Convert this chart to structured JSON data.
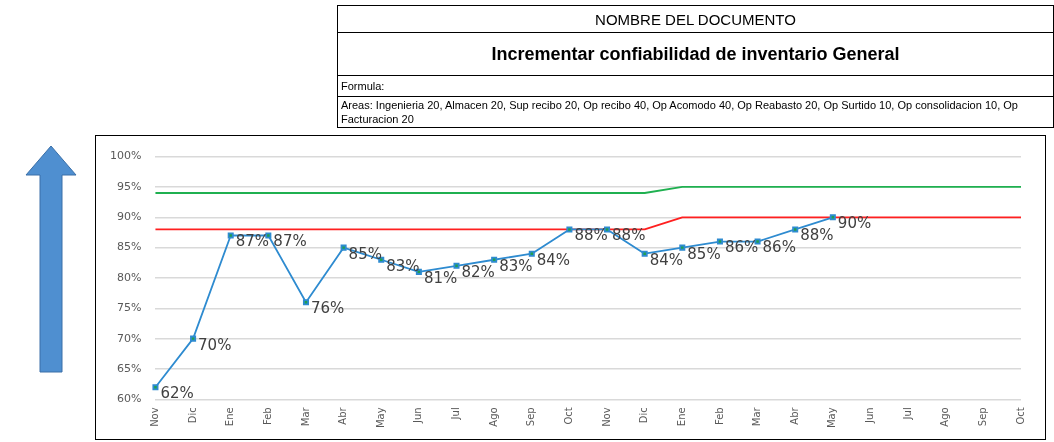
{
  "chart_data": {
    "type": "line",
    "subtitle": "NOMBRE DEL DOCUMENTO",
    "title": "Incrementar confiabilidad de inventario General",
    "annotations": [
      "Formula:",
      "Areas: Ingenieria 20, Almacen 20, Sup recibo 20, Op recibo 40, Op Acomodo 40, Op Reabasto 20, Op Surtido 10, Op consolidacion 10, Op Facturacion 20"
    ],
    "categories": [
      "Nov",
      "Dic",
      "Ene",
      "Feb",
      "Mar",
      "Abr",
      "May",
      "Jun",
      "Jul",
      "Ago",
      "Sep",
      "Oct",
      "Nov",
      "Dic",
      "Ene",
      "Feb",
      "Mar",
      "Abr",
      "May",
      "Jun",
      "Jul",
      "Ago",
      "Sep",
      "Oct"
    ],
    "series": [
      {
        "color": "#2e8bd0",
        "marker": "square",
        "values": [
          62,
          70,
          87,
          87,
          76,
          85,
          83,
          81,
          82,
          83,
          84,
          88,
          88,
          84,
          85,
          86,
          86,
          88,
          90,
          null,
          null,
          null,
          null,
          null
        ],
        "value_labels": [
          "62%",
          "70%",
          "87%",
          "87%",
          "76%",
          "85%",
          "83%",
          "81%",
          "82%",
          "83%",
          "84%",
          "88%",
          "88%",
          "84%",
          "85%",
          "86%",
          "86%",
          "88%",
          "90%",
          null,
          null,
          null,
          null,
          null
        ]
      },
      {
        "color": "#ff2020",
        "marker": "none",
        "values": [
          88,
          88,
          88,
          88,
          88,
          88,
          88,
          88,
          88,
          88,
          88,
          88,
          88,
          88,
          90,
          90,
          90,
          90,
          90,
          90,
          90,
          90,
          90,
          90
        ]
      },
      {
        "color": "#1fb050",
        "marker": "none",
        "values": [
          94,
          94,
          94,
          94,
          94,
          94,
          94,
          94,
          94,
          94,
          94,
          94,
          94,
          94,
          95,
          95,
          95,
          95,
          95,
          95,
          95,
          95,
          95,
          95
        ]
      }
    ],
    "ylim": [
      60,
      100
    ],
    "yticks": [
      {
        "value": 60,
        "label": "60%"
      },
      {
        "value": 65,
        "label": "65%"
      },
      {
        "value": 70,
        "label": "70%"
      },
      {
        "value": 75,
        "label": "75%"
      },
      {
        "value": 80,
        "label": "80%"
      },
      {
        "value": 85,
        "label": "85%"
      },
      {
        "value": 90,
        "label": "90%"
      },
      {
        "value": 95,
        "label": "95%"
      },
      {
        "value": 100,
        "label": "100%"
      }
    ],
    "grid": "y",
    "legend": false,
    "line_style": "solid"
  }
}
